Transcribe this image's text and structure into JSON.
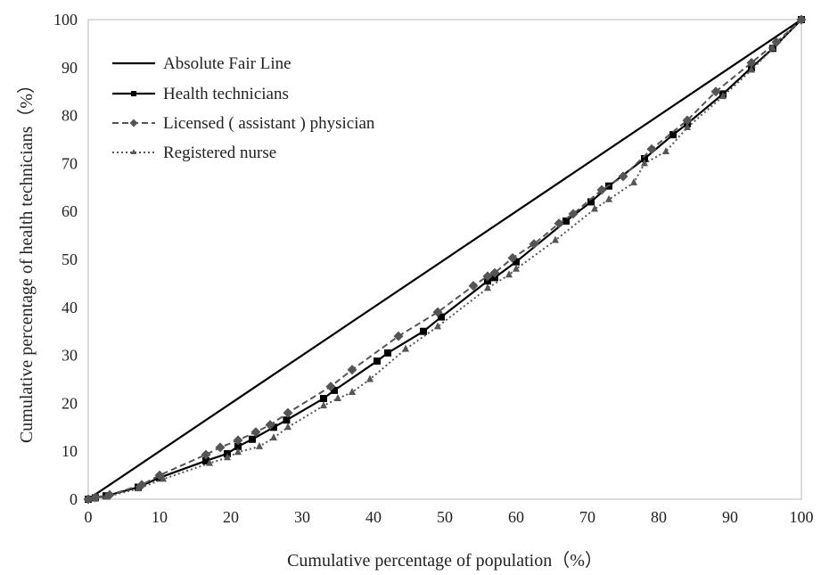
{
  "chart_data": {
    "type": "line",
    "title": "",
    "xlabel": "Cumulative percentage of population（%）",
    "ylabel": "Cumulative percentage of health technicians（%）",
    "xlim": [
      0,
      100
    ],
    "ylim": [
      0,
      100
    ],
    "xticks": [
      0,
      10,
      20,
      30,
      40,
      50,
      60,
      70,
      80,
      90,
      100
    ],
    "yticks": [
      0,
      10,
      20,
      30,
      40,
      50,
      60,
      70,
      80,
      90,
      100
    ],
    "grid": false,
    "legend_position": "top-left",
    "series": [
      {
        "name": "Absolute Fair Line",
        "style": "solid",
        "marker": "none",
        "color": "#000000",
        "x": [
          0,
          100
        ],
        "y": [
          0,
          100
        ]
      },
      {
        "name": "Health technicians",
        "style": "solid",
        "marker": "square",
        "color": "#000000",
        "x": [
          0,
          1,
          2.5,
          7,
          10,
          16.5,
          19.5,
          21,
          23,
          26,
          27.8,
          33,
          34.5,
          40.5,
          42,
          47,
          49.5,
          56,
          57,
          60,
          67,
          70.5,
          73,
          78,
          82,
          84,
          89,
          93,
          96,
          100
        ],
        "y": [
          0,
          0.3,
          0.7,
          2.5,
          4.5,
          8,
          9.5,
          11,
          12.5,
          15,
          16.5,
          21,
          22.7,
          28.8,
          30.5,
          35,
          38,
          45.5,
          46.2,
          49.5,
          58,
          62,
          65.3,
          71,
          76,
          78.3,
          84.5,
          90,
          94,
          100
        ]
      },
      {
        "name": "Licensed ( assistant ) physician",
        "style": "dashed",
        "marker": "diamond",
        "color": "#555555",
        "x": [
          0,
          1,
          3,
          7.5,
          10,
          16.5,
          18.5,
          21,
          23.5,
          25.5,
          28,
          34,
          37,
          43.5,
          49,
          54,
          56,
          57,
          59.5,
          62.5,
          66,
          68,
          72,
          75,
          79,
          84,
          88,
          93,
          96.5,
          100
        ],
        "y": [
          0,
          0.4,
          0.9,
          3,
          5,
          9.3,
          10.8,
          12.3,
          14,
          15.5,
          18,
          23.5,
          27,
          34,
          39,
          44.5,
          46.5,
          47.2,
          50.3,
          53.2,
          57.5,
          59.5,
          64.5,
          67.3,
          73,
          79,
          85,
          91,
          95.3,
          100
        ]
      },
      {
        "name": "Registered nurse",
        "style": "dotted",
        "marker": "triangle",
        "color": "#555555",
        "x": [
          0,
          1,
          2.5,
          7,
          10.5,
          17,
          19.5,
          21,
          24,
          26,
          28,
          33,
          35,
          37,
          39.5,
          44.5,
          49,
          56,
          59,
          60,
          65.5,
          71,
          73,
          76.5,
          78,
          81,
          84,
          89,
          93,
          96,
          100
        ],
        "y": [
          0,
          0.2,
          0.5,
          2.2,
          4.2,
          7.5,
          8.7,
          9.8,
          11,
          12.8,
          15,
          19.5,
          21,
          22.3,
          25,
          31.3,
          36,
          44,
          46.8,
          48,
          54,
          60.5,
          62.5,
          66,
          70,
          72.5,
          77.5,
          84,
          89.5,
          94,
          100
        ]
      }
    ]
  }
}
